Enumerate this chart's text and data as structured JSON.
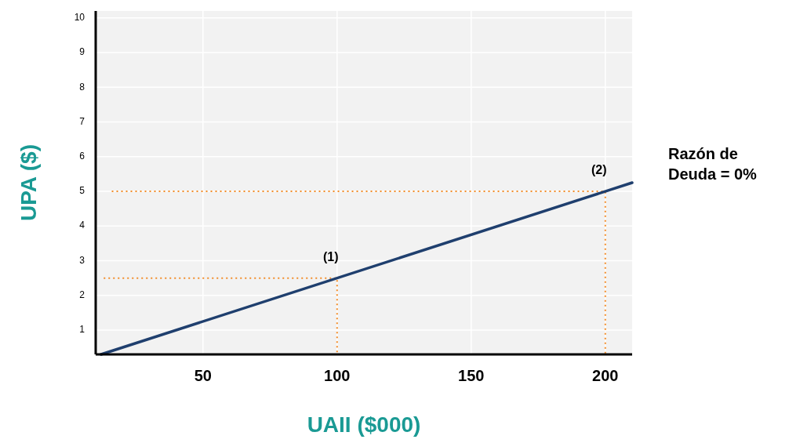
{
  "chart_data": {
    "type": "line",
    "xlabel": "UAII ($000)",
    "ylabel": "UPA ($)",
    "xlim": [
      10,
      210
    ],
    "xticks": [
      50,
      100,
      150,
      200
    ],
    "ylim": [
      0.3,
      10.2
    ],
    "yticks": [
      1,
      2,
      3,
      4,
      5,
      6,
      7,
      8,
      9,
      10
    ],
    "grid": true,
    "series": [
      {
        "name": "Razón de Deuda = 0%",
        "color": "#1f3f6e",
        "x": [
          12,
          210
        ],
        "values": [
          0.3,
          5.25
        ]
      },
      {
        "color": "#f28c28",
        "x": [
          13,
          100,
          100
        ],
        "values": [
          2.5,
          2.5,
          0.3
        ],
        "line_style": "dotted"
      },
      {
        "color": "#f28c28",
        "x": [
          16,
          200,
          200
        ],
        "values": [
          5,
          5,
          0.3
        ],
        "line_style": "dotted"
      }
    ],
    "annotations": [
      {
        "text": "(1)",
        "x": 100,
        "y": 2.5
      },
      {
        "text": "(2)",
        "x": 200,
        "y": 5
      }
    ]
  }
}
